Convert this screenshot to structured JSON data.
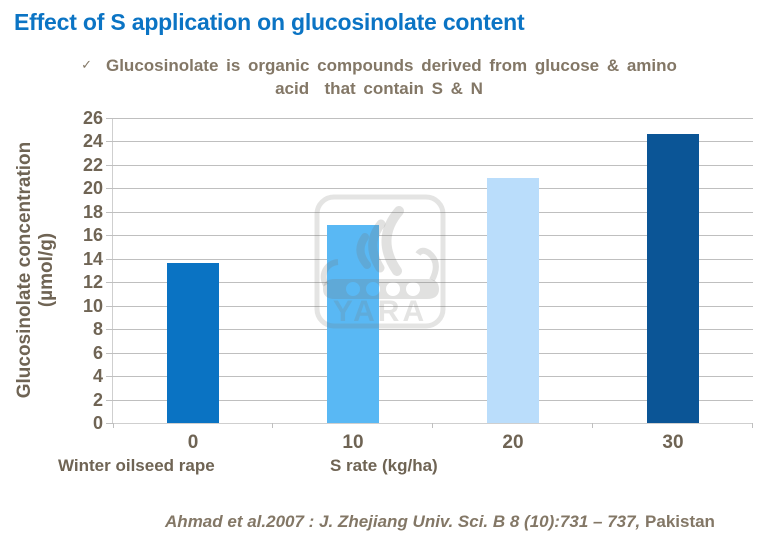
{
  "title": "Effect of S application on glucosinolate content",
  "subtitle": {
    "check": "✓",
    "line1": "Glucosinolate is organic compounds derived from glucose & amino",
    "line2": "acid  that contain S & N"
  },
  "chart_data": {
    "type": "bar",
    "categories": [
      "0",
      "10",
      "20",
      "30"
    ],
    "values": [
      13.6,
      16.9,
      20.9,
      24.6
    ],
    "series_name": "Winter oilseed rape",
    "title": "",
    "xlabel": "S rate (kg/ha)",
    "ylabel": "Glucosinolate concentration (µmol/g)",
    "ylabel_line1": "Glucosinolate concentration",
    "ylabel_line2": "(µmol/g)",
    "ylim": [
      0,
      26
    ],
    "ytick_step": 2,
    "grid": true,
    "legend": "none",
    "bar_colors": [
      "#0a73c3",
      "#59b8f4",
      "#baddfb",
      "#0b5596"
    ]
  },
  "footer": {
    "citation_italic": "Ahmad et al.2007 : J. Zhejiang Univ. Sci. B 8 (10):731 – 737,",
    "citation_plain": " Pakistan"
  },
  "watermark": {
    "text": "YARA"
  },
  "colors": {
    "title": "#0b74c4",
    "text_brown": "#837766",
    "axis_brown": "#6f6454",
    "grid": "#bfbfbf",
    "axis_line": "#cfcfcf"
  }
}
